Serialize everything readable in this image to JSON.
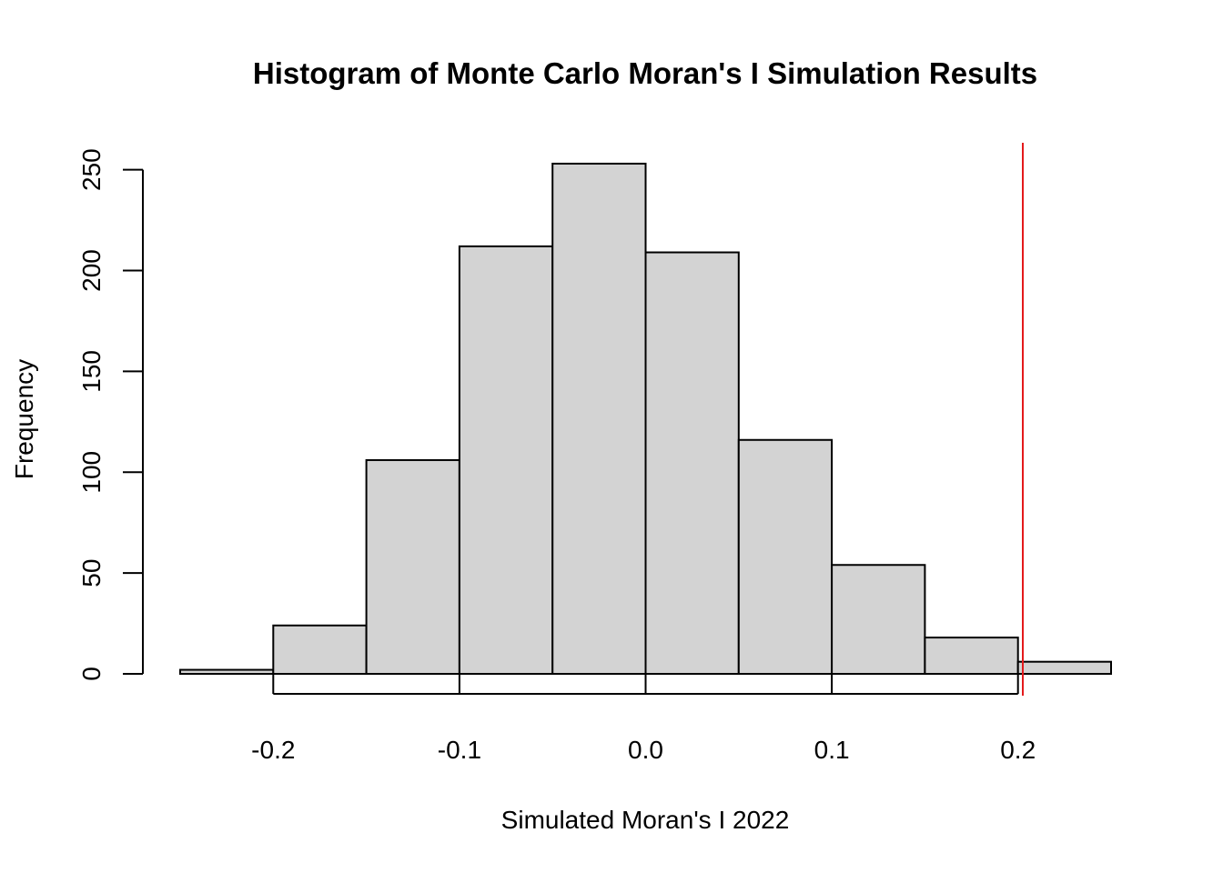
{
  "chart_data": {
    "type": "bar",
    "title": "Histogram of Monte Carlo Moran's I Simulation Results",
    "xlabel": "Simulated Moran's I 2022",
    "ylabel": "Frequency",
    "bins": [
      {
        "from": -0.25,
        "to": -0.2,
        "count": 2
      },
      {
        "from": -0.2,
        "to": -0.15,
        "count": 24
      },
      {
        "from": -0.15,
        "to": -0.1,
        "count": 106
      },
      {
        "from": -0.1,
        "to": -0.05,
        "count": 212
      },
      {
        "from": -0.05,
        "to": 0.0,
        "count": 253
      },
      {
        "from": 0.0,
        "to": 0.05,
        "count": 209
      },
      {
        "from": 0.05,
        "to": 0.1,
        "count": 116
      },
      {
        "from": 0.1,
        "to": 0.15,
        "count": 54
      },
      {
        "from": 0.15,
        "to": 0.2,
        "count": 18
      },
      {
        "from": 0.2,
        "to": 0.25,
        "count": 6
      }
    ],
    "xlim": [
      -0.25,
      0.25
    ],
    "ylim": [
      0,
      263
    ],
    "x_ticks": [
      -0.2,
      -0.1,
      0.0,
      0.1,
      0.2
    ],
    "x_tick_labels": [
      "-0.2",
      "-0.1",
      "0.0",
      "0.1",
      "0.2"
    ],
    "y_ticks": [
      0,
      50,
      100,
      150,
      200,
      250
    ],
    "y_tick_labels": [
      "0",
      "50",
      "100",
      "150",
      "200",
      "250"
    ],
    "reference_line": {
      "x": 0.203,
      "color": "#e41a1c"
    },
    "bar_fill": "#d3d3d3",
    "bar_stroke": "#000000",
    "grid": false
  }
}
